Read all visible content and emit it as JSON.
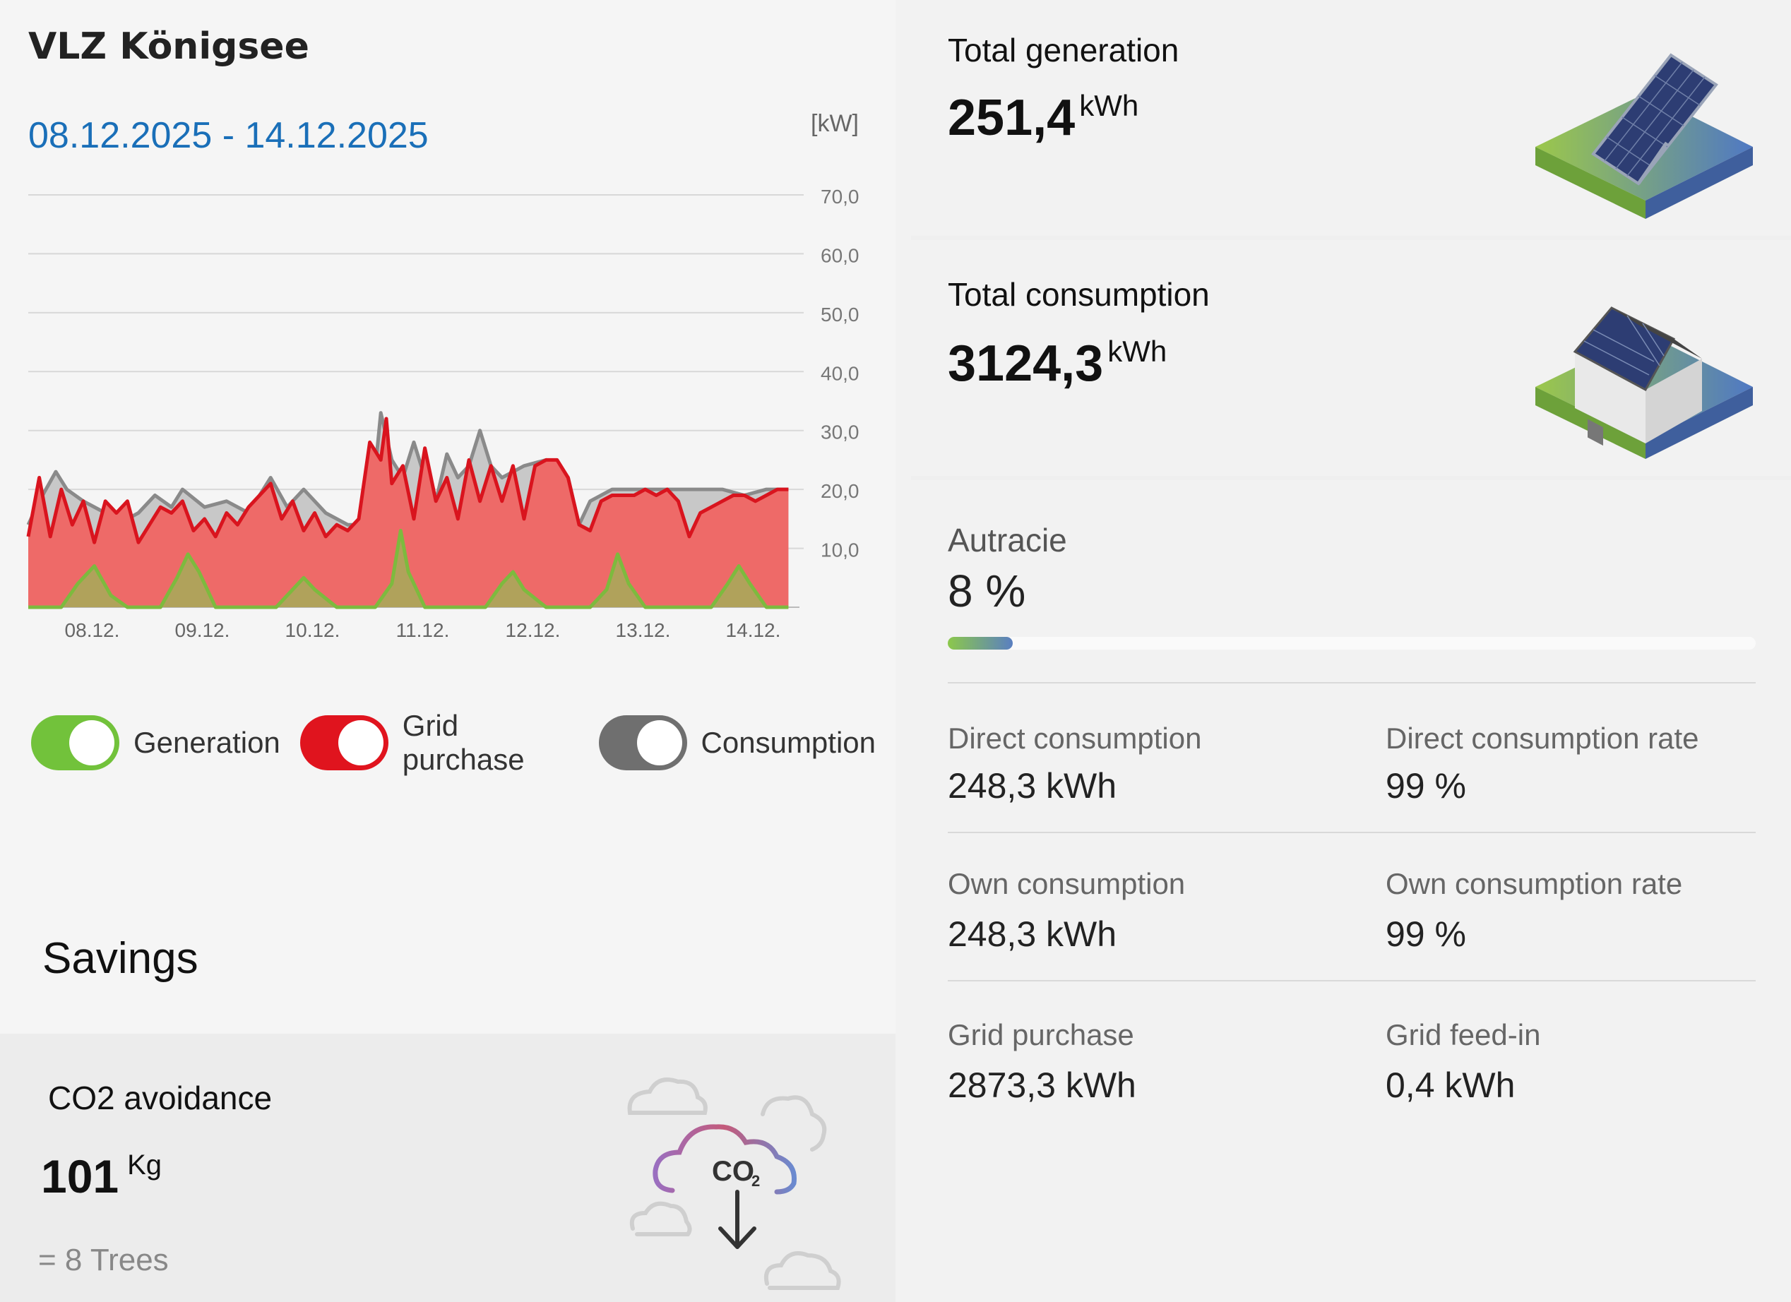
{
  "header": {
    "site_title": "VLZ Königsee",
    "date_range": "08.12.2025 - 14.12.2025"
  },
  "chart_data": {
    "type": "area",
    "ylabel": "[kW]",
    "y_ticks": [
      "70,0",
      "60,0",
      "50,0",
      "40,0",
      "30,0",
      "20,0",
      "10,0"
    ],
    "ylim": [
      0,
      70
    ],
    "x_ticks": [
      "08.12.",
      "09.12.",
      "10.12.",
      "11.12.",
      "12.12.",
      "13.12.",
      "14.12."
    ],
    "x_range_days": [
      0,
      7
    ],
    "series": [
      {
        "name": "Consumption",
        "color": "#8a8a8a",
        "x": [
          0,
          0.1,
          0.25,
          0.35,
          0.5,
          0.7,
          0.9,
          1.0,
          1.15,
          1.3,
          1.4,
          1.6,
          1.8,
          2.0,
          2.2,
          2.35,
          2.5,
          2.7,
          2.9,
          3.1,
          3.2,
          3.3,
          3.4,
          3.5,
          3.6,
          3.7,
          3.8,
          3.9,
          4.0,
          4.1,
          4.2,
          4.3,
          4.5,
          4.7,
          4.9,
          5.0,
          5.1,
          5.3,
          5.6,
          5.9,
          6.1,
          6.3,
          6.5,
          6.7,
          6.9
        ],
        "y": [
          14,
          18,
          23,
          20,
          18,
          16,
          15,
          16,
          19,
          17,
          20,
          17,
          18,
          16,
          22,
          17,
          20,
          16,
          14,
          14,
          33,
          25,
          22,
          28,
          22,
          18,
          26,
          22,
          24,
          30,
          24,
          22,
          24,
          25,
          22,
          14,
          18,
          20,
          20,
          20,
          20,
          20,
          19,
          20,
          20
        ]
      },
      {
        "name": "Grid purchase",
        "color": "#d9141e",
        "x": [
          0,
          0.1,
          0.2,
          0.3,
          0.4,
          0.5,
          0.6,
          0.7,
          0.8,
          0.9,
          1.0,
          1.1,
          1.2,
          1.3,
          1.4,
          1.5,
          1.6,
          1.7,
          1.8,
          1.9,
          2.0,
          2.1,
          2.2,
          2.3,
          2.4,
          2.5,
          2.6,
          2.7,
          2.8,
          2.9,
          3.0,
          3.1,
          3.2,
          3.25,
          3.3,
          3.4,
          3.5,
          3.6,
          3.7,
          3.8,
          3.9,
          4.0,
          4.1,
          4.2,
          4.3,
          4.4,
          4.5,
          4.6,
          4.7,
          4.8,
          4.9,
          5.0,
          5.1,
          5.2,
          5.3,
          5.4,
          5.5,
          5.6,
          5.7,
          5.8,
          5.9,
          6.0,
          6.1,
          6.2,
          6.3,
          6.4,
          6.5,
          6.6,
          6.7,
          6.8,
          6.9
        ],
        "y": [
          12,
          22,
          12,
          20,
          14,
          18,
          11,
          18,
          16,
          18,
          11,
          14,
          17,
          16,
          18,
          13,
          15,
          12,
          16,
          14,
          17,
          19,
          21,
          15,
          18,
          13,
          16,
          12,
          14,
          13,
          15,
          28,
          25,
          32,
          21,
          24,
          15,
          27,
          18,
          22,
          15,
          25,
          18,
          24,
          18,
          24,
          15,
          24,
          25,
          25,
          22,
          14,
          13,
          18,
          19,
          19,
          19,
          20,
          19,
          20,
          18,
          12,
          16,
          17,
          18,
          19,
          19,
          18,
          19,
          20,
          20
        ]
      },
      {
        "name": "Generation",
        "color": "#7dba3e",
        "x": [
          0,
          0.3,
          0.45,
          0.6,
          0.75,
          0.9,
          1.2,
          1.35,
          1.45,
          1.55,
          1.7,
          1.9,
          2.25,
          2.4,
          2.5,
          2.6,
          2.8,
          3.15,
          3.3,
          3.38,
          3.45,
          3.6,
          3.8,
          4.15,
          4.3,
          4.4,
          4.5,
          4.7,
          5.1,
          5.25,
          5.35,
          5.45,
          5.6,
          5.9,
          6.2,
          6.35,
          6.45,
          6.55,
          6.7,
          6.9
        ],
        "y": [
          0,
          0,
          4,
          7,
          2,
          0,
          0,
          5,
          9,
          6,
          0,
          0,
          0,
          3,
          5,
          3,
          0,
          0,
          4,
          13,
          6,
          0,
          0,
          0,
          4,
          6,
          3,
          0,
          0,
          3,
          9,
          4,
          0,
          0,
          0,
          4,
          7,
          4,
          0,
          0
        ]
      }
    ]
  },
  "toggles": [
    {
      "label": "Generation",
      "color": "#72c23b",
      "on": true
    },
    {
      "label": "Grid purchase",
      "color": "#e0141e",
      "on": true
    },
    {
      "label": "Consumption",
      "color": "#6f6f6f",
      "on": true
    }
  ],
  "savings": {
    "title": "Savings",
    "co2_title": "CO2 avoidance",
    "co2_value": "101",
    "co2_unit": "Kg",
    "co2_trees": "= 8 Trees",
    "icon": "co2-cloud-icon",
    "icon_text": "CO",
    "icon_subscript": "2"
  },
  "totals": {
    "generation": {
      "title": "Total generation",
      "value": "251,4",
      "unit": "kWh",
      "icon": "solar-panel-icon"
    },
    "consumption": {
      "title": "Total consumption",
      "value": "3124,3",
      "unit": "kWh",
      "icon": "house-icon"
    }
  },
  "autarky": {
    "title": "Autracie",
    "value": "8 %",
    "fraction": 0.08
  },
  "metrics": [
    {
      "label": "Direct consumption",
      "value": "248,3 kWh"
    },
    {
      "label": "Direct consumption rate",
      "value": "99 %"
    },
    {
      "label": "Own consumption",
      "value": "248,3 kWh"
    },
    {
      "label": "Own consumption rate",
      "value": "99 %"
    },
    {
      "label": "Grid purchase",
      "value": "2873,3 kWh"
    },
    {
      "label": "Grid feed-in",
      "value": "0,4 kWh"
    }
  ]
}
